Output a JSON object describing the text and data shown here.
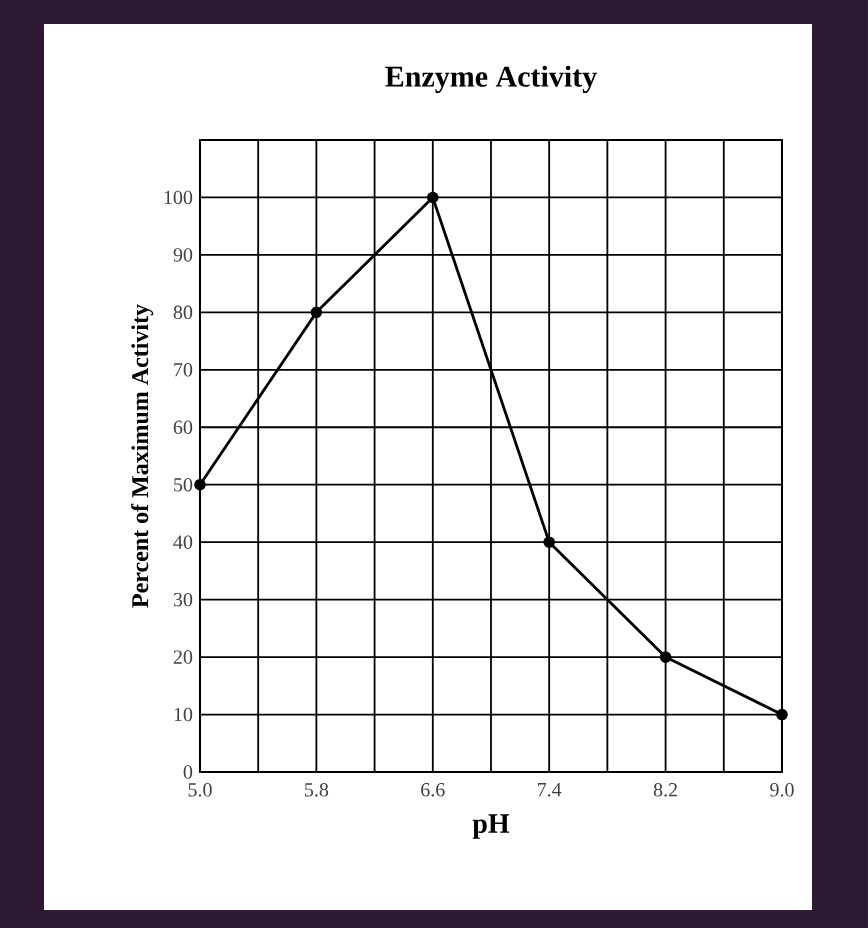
{
  "chart_data": {
    "type": "line",
    "title": "Enzyme Activity",
    "xlabel": "pH",
    "ylabel": "Percent of Maximum Activity",
    "x": [
      5.0,
      5.8,
      6.6,
      7.4,
      8.2,
      9.0
    ],
    "series": [
      {
        "color": "#000000",
        "values": [
          50,
          80,
          100,
          40,
          20,
          10
        ]
      }
    ],
    "xlim": [
      5.0,
      9.0
    ],
    "xticks": [
      {
        "value": 5.0,
        "label": "5.0"
      },
      {
        "value": 5.4,
        "label": null
      },
      {
        "value": 5.8,
        "label": "5.8"
      },
      {
        "value": 6.2,
        "label": null
      },
      {
        "value": 6.6,
        "label": "6.6"
      },
      {
        "value": 7.0,
        "label": null
      },
      {
        "value": 7.4,
        "label": "7.4"
      },
      {
        "value": 7.8,
        "label": null
      },
      {
        "value": 8.2,
        "label": "8.2"
      },
      {
        "value": 8.6,
        "label": null
      },
      {
        "value": 9.0,
        "label": "9.0"
      }
    ],
    "ylim": [
      0,
      110
    ],
    "yticks": [
      0,
      10,
      20,
      30,
      40,
      50,
      60,
      70,
      80,
      90,
      100,
      {
        "value": 110,
        "label": null
      }
    ],
    "grid": true,
    "marker": "circle",
    "line_style": "solid"
  }
}
